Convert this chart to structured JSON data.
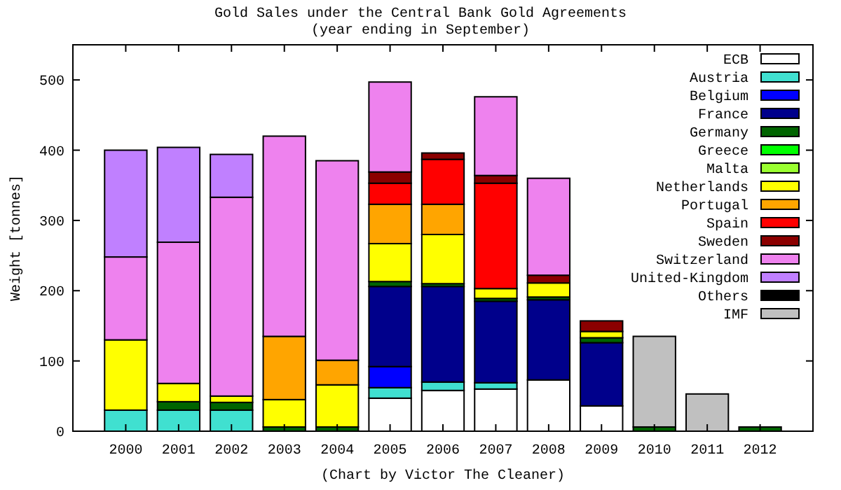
{
  "chart_data": {
    "type": "bar",
    "stacked": true,
    "title": "Gold Sales under the Central Bank Gold Agreements",
    "subtitle": "(year ending in September)",
    "xlabel": "(Chart by Victor The Cleaner)",
    "ylabel": "Weight [tonnes]",
    "categories": [
      "2000",
      "2001",
      "2002",
      "2003",
      "2004",
      "2005",
      "2006",
      "2007",
      "2008",
      "2009",
      "2010",
      "2011",
      "2012"
    ],
    "ylim": [
      0,
      550
    ],
    "yticks": [
      0,
      100,
      200,
      300,
      400,
      500
    ],
    "grid": false,
    "legend": "top right",
    "series": [
      {
        "name": "ECB",
        "color": "#ffffff",
        "values": [
          null,
          null,
          null,
          null,
          null,
          47,
          58,
          60,
          73,
          36,
          null,
          null,
          null
        ]
      },
      {
        "name": "Austria",
        "color": "#40e0d0",
        "values": [
          30,
          30,
          30,
          null,
          null,
          15,
          12,
          9,
          null,
          null,
          null,
          null,
          null
        ]
      },
      {
        "name": "Belgium",
        "color": "#0000ff",
        "values": [
          null,
          null,
          null,
          null,
          null,
          30,
          null,
          null,
          null,
          null,
          null,
          null,
          null
        ]
      },
      {
        "name": "France",
        "color": "#00008b",
        "values": [
          null,
          null,
          null,
          null,
          null,
          114,
          136,
          116,
          114,
          90,
          null,
          null,
          null
        ]
      },
      {
        "name": "Germany",
        "color": "#006400",
        "values": [
          null,
          12,
          11,
          6,
          6,
          7,
          4,
          4,
          4,
          7,
          6,
          null,
          6
        ]
      },
      {
        "name": "Greece",
        "color": "#00ff00",
        "values": [
          null,
          null,
          null,
          null,
          null,
          null,
          null,
          null,
          null,
          null,
          null,
          null,
          null
        ]
      },
      {
        "name": "Malta",
        "color": "#9aff30",
        "values": [
          null,
          null,
          null,
          null,
          null,
          null,
          null,
          null,
          null,
          null,
          null,
          null,
          null
        ]
      },
      {
        "name": "Netherlands",
        "color": "#ffff00",
        "values": [
          100,
          26,
          9,
          39,
          60,
          54,
          70,
          14,
          20,
          9,
          null,
          null,
          null
        ]
      },
      {
        "name": "Portugal",
        "color": "#ffa500",
        "values": [
          null,
          null,
          null,
          90,
          35,
          56,
          43,
          null,
          null,
          null,
          null,
          null,
          null
        ]
      },
      {
        "name": "Spain",
        "color": "#ff0000",
        "values": [
          null,
          null,
          null,
          null,
          null,
          30,
          64,
          150,
          null,
          null,
          null,
          null,
          null
        ]
      },
      {
        "name": "Sweden",
        "color": "#8b0000",
        "values": [
          null,
          null,
          null,
          null,
          null,
          16,
          9,
          11,
          11,
          15,
          null,
          null,
          null
        ]
      },
      {
        "name": "Switzerland",
        "color": "#ee82ee",
        "values": [
          118,
          201,
          283,
          285,
          284,
          128,
          null,
          112,
          138,
          null,
          null,
          null,
          null
        ]
      },
      {
        "name": "United-Kingdom",
        "color": "#c080ff",
        "values": [
          152,
          135,
          61,
          null,
          null,
          null,
          null,
          null,
          null,
          null,
          null,
          null,
          null
        ]
      },
      {
        "name": "Others",
        "color": "#000000",
        "values": [
          null,
          null,
          null,
          null,
          null,
          null,
          null,
          null,
          null,
          null,
          null,
          null,
          null
        ]
      },
      {
        "name": "IMF",
        "color": "#c0c0c0",
        "values": [
          null,
          null,
          null,
          null,
          null,
          null,
          null,
          null,
          null,
          null,
          129,
          53,
          null
        ]
      }
    ]
  }
}
